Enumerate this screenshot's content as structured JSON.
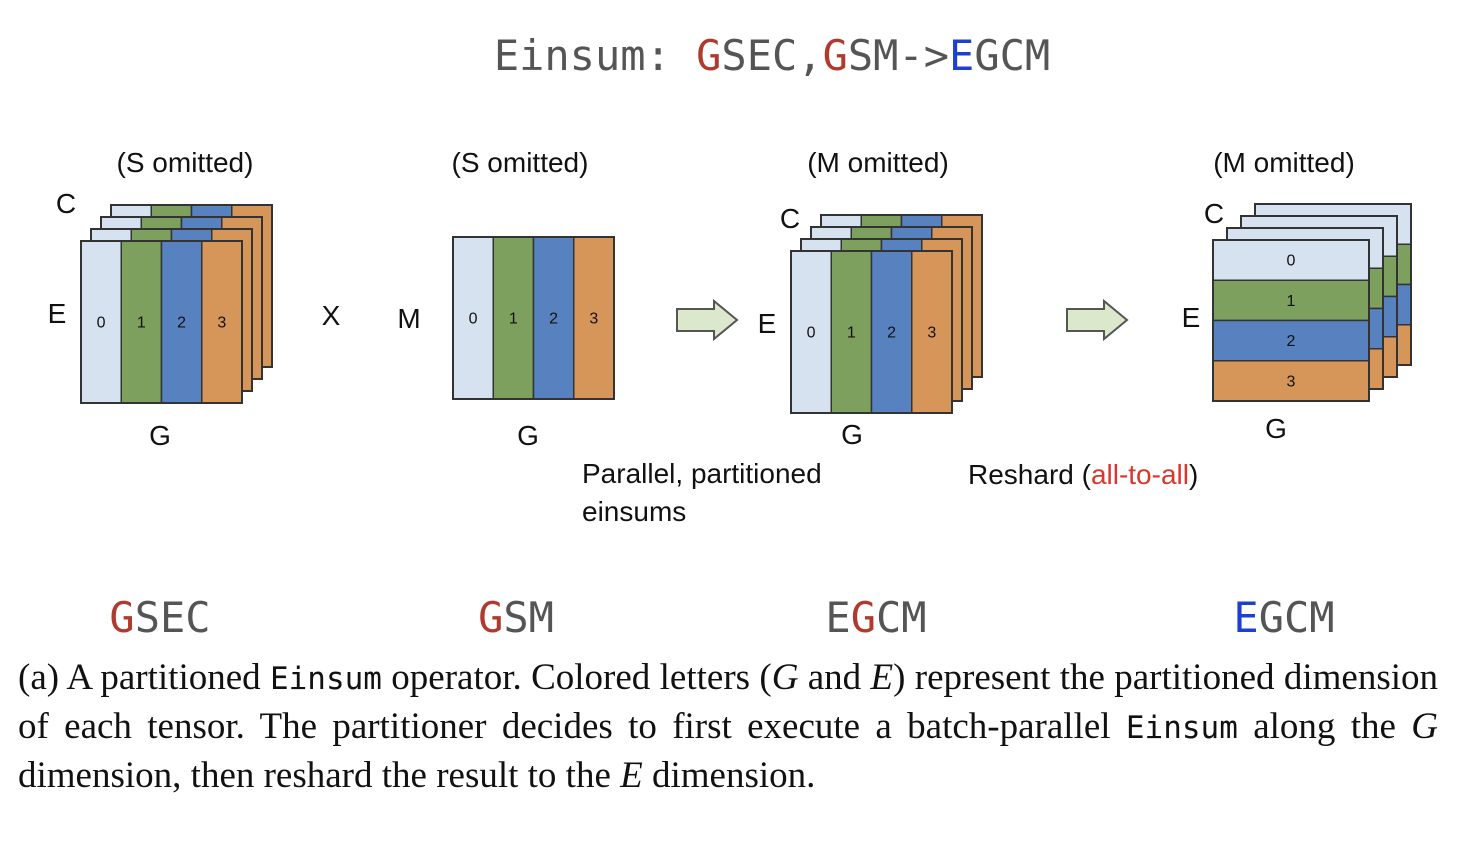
{
  "colors": {
    "light_blue": "#d6e2f0",
    "green": "#7ea05e",
    "blue": "#5782bf",
    "orange": "#d6965a",
    "red": "#b03a2e",
    "dark_blue": "#1f3fcf",
    "gray": "#555555",
    "arrow_fill": "#dbe8cc",
    "arrow_stroke": "#555555"
  },
  "header": {
    "prefix": "Einsum: ",
    "g1": "G",
    "sec": "SEC,",
    "g2": "G",
    "sm": "SM->",
    "e": "E",
    "gcm": "GCM"
  },
  "tensors": [
    {
      "note": "(S omitted)",
      "top_label": "C",
      "side_label": "E",
      "bottom_label": "G",
      "shards": [
        "0",
        "1",
        "2",
        "3"
      ],
      "name_red": "G",
      "name_rest": "SEC"
    },
    {
      "note": "(S omitted)",
      "side_label": "M",
      "bottom_label": "G",
      "shards": [
        "0",
        "1",
        "2",
        "3"
      ],
      "name_red": "G",
      "name_rest": "SM"
    },
    {
      "note": "(M omitted)",
      "top_label": "C",
      "side_label": "E",
      "bottom_label": "G",
      "shards": [
        "0",
        "1",
        "2",
        "3"
      ],
      "name_pre": "E",
      "name_red": "G",
      "name_rest": "CM"
    },
    {
      "note": "(M omitted)",
      "top_label": "C",
      "side_label": "E",
      "bottom_label": "G",
      "shards": [
        "0",
        "1",
        "2",
        "3"
      ],
      "name_blue": "E",
      "name_rest": "GCM"
    }
  ],
  "operator": "X",
  "step1_label": [
    "Parallel, partitioned",
    "einsums"
  ],
  "step2_label": {
    "prefix": "Reshard (",
    "highlight": "all-to-all",
    "suffix": ")"
  },
  "caption": {
    "t1": "(a) A partitioned ",
    "m1": "Einsum",
    "t2": " operator.  Colored letters (",
    "i1": "G",
    "t3": " and ",
    "i2": "E",
    "t4": ") represent the partitioned dimension of each tensor. The partitioner decides to first execute a batch-parallel ",
    "m2": "Einsum",
    "t5": " along the ",
    "i3": "G",
    "t6": " dimension, then reshard the result to the ",
    "i4": "E",
    "t7": " dimension."
  }
}
